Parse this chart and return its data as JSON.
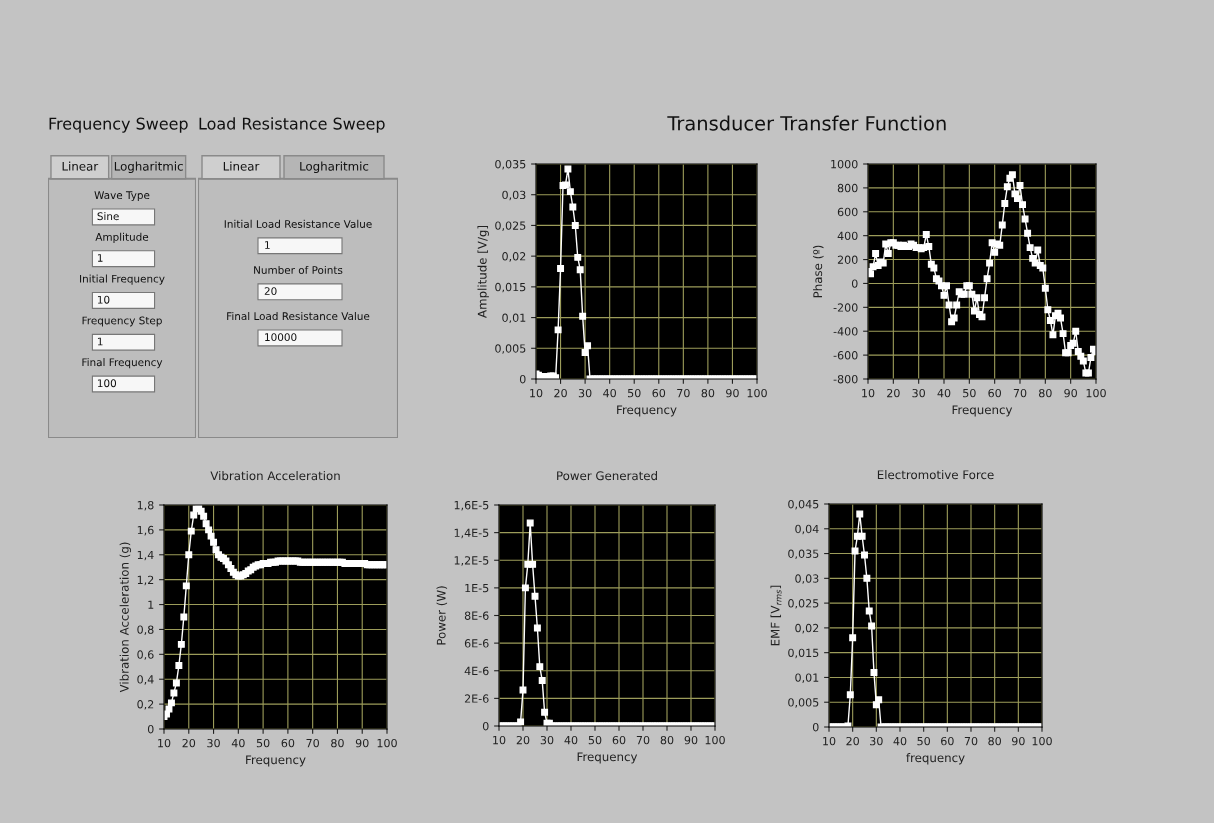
{
  "chart_data": [
    {
      "type": "other",
      "title": "Frequency Sweep",
      "annotations": [
        "Linear",
        "Logharitmic",
        "Wave Type",
        "Sine",
        "Amplitude",
        "1",
        "Initial Frequency",
        "10",
        "Frequency Step",
        "1",
        "Final Frequency",
        "100"
      ]
    },
    {
      "type": "other",
      "title": "Load Resistance Sweep",
      "annotations": [
        "Linear",
        "Logharitmic",
        "Initial Load Resistance Value",
        "1",
        "Number of Points",
        "20",
        "Final Load Resistance Value",
        "10000"
      ]
    },
    {
      "type": "line",
      "title": "Transducer Transfer Function",
      "xlabel": "Frequency",
      "ylabel": "Amplitude [V/g]",
      "marker": "square",
      "grid": true,
      "x": [
        10,
        11,
        12,
        13,
        14,
        15,
        16,
        17,
        18,
        19,
        20,
        21,
        22,
        23,
        24,
        25,
        26,
        27,
        28,
        29,
        30,
        31,
        32,
        33,
        34,
        35,
        36,
        37,
        38,
        39,
        40,
        41,
        42,
        43,
        44,
        45,
        46,
        47,
        48,
        49,
        50,
        51,
        52,
        53,
        54,
        55,
        56,
        57,
        58,
        59,
        60,
        61,
        62,
        63,
        64,
        65,
        66,
        67,
        68,
        69,
        70,
        71,
        72,
        73,
        74,
        75,
        76,
        77,
        78,
        79,
        80,
        81,
        82,
        83,
        84,
        85,
        86,
        87,
        88,
        89,
        90,
        91,
        92,
        93,
        94,
        95,
        96,
        97,
        98,
        99,
        100
      ],
      "series": [
        {
          "color": "#ffffff",
          "values": [
            0.0008,
            0.0006,
            0.0004,
            0.0004,
            0.0004,
            0.0004,
            0.0005,
            0.0005,
            0.0002,
            0.008,
            0.018,
            0.0315,
            0.0316,
            0.0342,
            0.0305,
            0.028,
            0.025,
            0.0198,
            0.0178,
            0.0102,
            0.0043,
            0.0054,
            0,
            0,
            0,
            0,
            0,
            0,
            0,
            0,
            0,
            0,
            0,
            0,
            0,
            0,
            0,
            0,
            0,
            0,
            0,
            0,
            0,
            0,
            0,
            0,
            0,
            0,
            0,
            0,
            0,
            0,
            0,
            0,
            0,
            0,
            0,
            0,
            0,
            0,
            0,
            0,
            0,
            0,
            0,
            0,
            0,
            0,
            0,
            0,
            0,
            0,
            0,
            0,
            0,
            0,
            0,
            0,
            0,
            0,
            0,
            0,
            0,
            0,
            0,
            0,
            0,
            0,
            0,
            0,
            0
          ]
        }
      ],
      "xlim": [
        10,
        100
      ],
      "xticks": [
        10,
        20,
        30,
        40,
        50,
        60,
        70,
        80,
        90,
        100
      ],
      "ylim": [
        0,
        0.035
      ],
      "yticks": [
        {
          "value": 0,
          "label": "0"
        },
        {
          "value": 0.005,
          "label": "0,005"
        },
        {
          "value": 0.01,
          "label": "0,01"
        },
        {
          "value": 0.015,
          "label": "0,015"
        },
        {
          "value": 0.02,
          "label": "0,02"
        },
        {
          "value": 0.025,
          "label": "0,025"
        },
        {
          "value": 0.03,
          "label": "0,03"
        },
        {
          "value": 0.035,
          "label": "0,035"
        }
      ]
    },
    {
      "type": "line",
      "xlabel": "Frequency",
      "ylabel": "Phase (º)",
      "marker": "square",
      "grid": true,
      "x": [
        10,
        11,
        12,
        13,
        14,
        15,
        16,
        17,
        18,
        19,
        20,
        21,
        22,
        23,
        24,
        25,
        26,
        27,
        28,
        29,
        30,
        31,
        32,
        33,
        34,
        35,
        36,
        37,
        38,
        39,
        40,
        41,
        42,
        43,
        44,
        45,
        46,
        47,
        48,
        49,
        50,
        51,
        52,
        53,
        54,
        55,
        56,
        57,
        58,
        59,
        60,
        61,
        62,
        63,
        64,
        65,
        66,
        67,
        68,
        69,
        70,
        71,
        72,
        73,
        74,
        75,
        76,
        77,
        78,
        79,
        80,
        81,
        82,
        83,
        84,
        85,
        86,
        87,
        88,
        89,
        90,
        91,
        92,
        93,
        94,
        95,
        96,
        97,
        98,
        99,
        100
      ],
      "series": [
        {
          "color": "#ffffff",
          "values": [
            100,
            80,
            140,
            250,
            150,
            180,
            170,
            330,
            250,
            340,
            340,
            320,
            320,
            310,
            320,
            310,
            310,
            330,
            320,
            300,
            300,
            290,
            300,
            410,
            310,
            160,
            130,
            40,
            20,
            -20,
            -100,
            -20,
            -180,
            -320,
            -290,
            -180,
            -70,
            -90,
            -90,
            -20,
            -20,
            -90,
            -230,
            -120,
            -260,
            -280,
            -120,
            40,
            170,
            340,
            260,
            330,
            320,
            490,
            670,
            810,
            880,
            910,
            750,
            710,
            820,
            660,
            540,
            420,
            300,
            210,
            170,
            280,
            150,
            130,
            -40,
            -220,
            -310,
            -430,
            -270,
            -250,
            -290,
            -420,
            -580,
            -580,
            -520,
            -500,
            -400,
            -570,
            -610,
            -650,
            -750,
            -750,
            -620,
            -550,
            -570
          ]
        }
      ],
      "xlim": [
        10,
        100
      ],
      "xticks": [
        10,
        20,
        30,
        40,
        50,
        60,
        70,
        80,
        90,
        100
      ],
      "ylim": [
        -800,
        1000
      ],
      "yticks": [
        -800,
        -600,
        -400,
        -200,
        0,
        200,
        400,
        600,
        800,
        1000
      ]
    },
    {
      "type": "line",
      "title": "Vibration Acceleration",
      "xlabel": "Frequency",
      "ylabel": "Vibration Acceleration (g)",
      "marker": "square",
      "grid": true,
      "x": [
        10,
        11,
        12,
        13,
        14,
        15,
        16,
        17,
        18,
        19,
        20,
        21,
        22,
        23,
        24,
        25,
        26,
        27,
        28,
        29,
        30,
        31,
        32,
        33,
        34,
        35,
        36,
        37,
        38,
        39,
        40,
        41,
        42,
        43,
        44,
        45,
        46,
        47,
        48,
        49,
        50,
        51,
        52,
        53,
        54,
        55,
        56,
        57,
        58,
        59,
        60,
        61,
        62,
        63,
        64,
        65,
        66,
        67,
        68,
        69,
        70,
        71,
        72,
        73,
        74,
        75,
        76,
        77,
        78,
        79,
        80,
        81,
        82,
        83,
        84,
        85,
        86,
        87,
        88,
        89,
        90,
        91,
        92,
        93,
        94,
        95,
        96,
        97,
        98,
        99,
        100
      ],
      "series": [
        {
          "color": "#ffffff",
          "values": [
            0.1,
            0.12,
            0.16,
            0.21,
            0.29,
            0.37,
            0.51,
            0.68,
            0.9,
            1.15,
            1.4,
            1.59,
            1.72,
            1.77,
            1.78,
            1.75,
            1.71,
            1.65,
            1.6,
            1.55,
            1.5,
            1.44,
            1.4,
            1.38,
            1.37,
            1.35,
            1.32,
            1.29,
            1.26,
            1.24,
            1.23,
            1.23,
            1.24,
            1.25,
            1.27,
            1.28,
            1.3,
            1.31,
            1.32,
            1.32,
            1.33,
            1.33,
            1.33,
            1.34,
            1.34,
            1.34,
            1.35,
            1.35,
            1.35,
            1.35,
            1.35,
            1.35,
            1.35,
            1.35,
            1.35,
            1.34,
            1.34,
            1.34,
            1.34,
            1.34,
            1.34,
            1.34,
            1.34,
            1.34,
            1.34,
            1.34,
            1.34,
            1.34,
            1.34,
            1.34,
            1.34,
            1.34,
            1.34,
            1.33,
            1.33,
            1.33,
            1.33,
            1.33,
            1.33,
            1.33,
            1.33,
            1.33,
            1.32,
            1.32,
            1.32,
            1.32,
            1.32,
            1.32,
            1.32,
            1.32,
            1.32
          ]
        }
      ],
      "xlim": [
        10,
        100
      ],
      "xticks": [
        10,
        20,
        30,
        40,
        50,
        60,
        70,
        80,
        90,
        100
      ],
      "ylim": [
        0,
        1.8
      ],
      "yticks": [
        {
          "value": 0,
          "label": "0"
        },
        {
          "value": 0.2,
          "label": "0,2"
        },
        {
          "value": 0.4,
          "label": "0,4"
        },
        {
          "value": 0.6,
          "label": "0,6"
        },
        {
          "value": 0.8,
          "label": "0,8"
        },
        {
          "value": 1,
          "label": "1"
        },
        {
          "value": 1.2,
          "label": "1,2"
        },
        {
          "value": 1.4,
          "label": "1,4"
        },
        {
          "value": 1.6,
          "label": "1,6"
        },
        {
          "value": 1.8,
          "label": "1,8"
        }
      ]
    },
    {
      "type": "line",
      "title": "Power Generated",
      "xlabel": "Frequency",
      "ylabel": "Power (W)",
      "marker": "square",
      "grid": true,
      "x": [
        10,
        11,
        12,
        13,
        14,
        15,
        16,
        17,
        18,
        19,
        20,
        21,
        22,
        23,
        24,
        25,
        26,
        27,
        28,
        29,
        30,
        31,
        32,
        33,
        34,
        35,
        36,
        37,
        38,
        39,
        40,
        41,
        42,
        43,
        44,
        45,
        46,
        47,
        48,
        49,
        50,
        51,
        52,
        53,
        54,
        55,
        56,
        57,
        58,
        59,
        60,
        61,
        62,
        63,
        64,
        65,
        66,
        67,
        68,
        69,
        70,
        71,
        72,
        73,
        74,
        75,
        76,
        77,
        78,
        79,
        80,
        81,
        82,
        83,
        84,
        85,
        86,
        87,
        88,
        89,
        90,
        91,
        92,
        93,
        94,
        95,
        96,
        97,
        98,
        99,
        100
      ],
      "series": [
        {
          "color": "#ffffff",
          "values": [
            0,
            0,
            0,
            0,
            0,
            0,
            0,
            0,
            0,
            3e-07,
            2.6e-06,
            1e-05,
            1.17e-05,
            1.47e-05,
            1.17e-05,
            9.4e-06,
            7.1e-06,
            4.3e-06,
            3.3e-06,
            1e-06,
            2e-07,
            2e-07,
            0,
            0,
            0,
            0,
            0,
            0,
            0,
            0,
            0,
            0,
            0,
            0,
            0,
            0,
            0,
            0,
            0,
            0,
            0,
            0,
            0,
            0,
            0,
            0,
            0,
            0,
            0,
            0,
            0,
            0,
            0,
            0,
            0,
            0,
            0,
            0,
            0,
            0,
            0,
            0,
            0,
            0,
            0,
            0,
            0,
            0,
            0,
            0,
            0,
            0,
            0,
            0,
            0,
            0,
            0,
            0,
            0,
            0,
            0,
            0,
            0,
            0,
            0,
            0,
            0,
            0,
            0,
            0,
            0
          ]
        }
      ],
      "xlim": [
        10,
        100
      ],
      "xticks": [
        10,
        20,
        30,
        40,
        50,
        60,
        70,
        80,
        90,
        100
      ],
      "ylim": [
        0,
        1.6e-05
      ],
      "yticks": [
        {
          "value": 0,
          "label": "0"
        },
        {
          "value": 2e-06,
          "label": "2E-6"
        },
        {
          "value": 4e-06,
          "label": "4E-6"
        },
        {
          "value": 6e-06,
          "label": "6E-6"
        },
        {
          "value": 8e-06,
          "label": "8E-6"
        },
        {
          "value": 1e-05,
          "label": "1E-5"
        },
        {
          "value": 1.2e-05,
          "label": "1,2E-5"
        },
        {
          "value": 1.4e-05,
          "label": "1,4E-5"
        },
        {
          "value": 1.6e-05,
          "label": "1,6E-5"
        }
      ]
    },
    {
      "type": "line",
      "title": "Electromotive Force",
      "xlabel": "frequency",
      "ylabel": "EMF [V$_{rms}$]",
      "marker": "square",
      "grid": true,
      "x": [
        10,
        11,
        12,
        13,
        14,
        15,
        16,
        17,
        18,
        19,
        20,
        21,
        22,
        23,
        24,
        25,
        26,
        27,
        28,
        29,
        30,
        31,
        32,
        33,
        34,
        35,
        36,
        37,
        38,
        39,
        40,
        41,
        42,
        43,
        44,
        45,
        46,
        47,
        48,
        49,
        50,
        51,
        52,
        53,
        54,
        55,
        56,
        57,
        58,
        59,
        60,
        61,
        62,
        63,
        64,
        65,
        66,
        67,
        68,
        69,
        70,
        71,
        72,
        73,
        74,
        75,
        76,
        77,
        78,
        79,
        80,
        81,
        82,
        83,
        84,
        85,
        86,
        87,
        88,
        89,
        90,
        91,
        92,
        93,
        94,
        95,
        96,
        97,
        98,
        99,
        100
      ],
      "series": [
        {
          "color": "#ffffff",
          "values": [
            0,
            0,
            0,
            0,
            0,
            0,
            0,
            0,
            0.0002,
            0.0065,
            0.018,
            0.0355,
            0.0385,
            0.043,
            0.0385,
            0.0347,
            0.03,
            0.0234,
            0.0204,
            0.011,
            0.0045,
            0.0055,
            0,
            0,
            0,
            0,
            0,
            0,
            0,
            0,
            0,
            0,
            0,
            0,
            0,
            0,
            0,
            0,
            0,
            0,
            0,
            0,
            0,
            0,
            0,
            0,
            0,
            0,
            0,
            0,
            0,
            0,
            0,
            0,
            0,
            0,
            0,
            0,
            0,
            0,
            0,
            0,
            0,
            0,
            0,
            0,
            0,
            0,
            0,
            0,
            0,
            0,
            0,
            0,
            0,
            0,
            0,
            0,
            0,
            0,
            0,
            0,
            0,
            0,
            0,
            0,
            0,
            0,
            0,
            0,
            0
          ]
        }
      ],
      "xlim": [
        10,
        100
      ],
      "xticks": [
        10,
        20,
        30,
        40,
        50,
        60,
        70,
        80,
        90,
        100
      ],
      "ylim": [
        0,
        0.045
      ],
      "yticks": [
        {
          "value": 0,
          "label": "0"
        },
        {
          "value": 0.005,
          "label": "0,005"
        },
        {
          "value": 0.01,
          "label": "0,01"
        },
        {
          "value": 0.015,
          "label": "0,015"
        },
        {
          "value": 0.02,
          "label": "0,02"
        },
        {
          "value": 0.025,
          "label": "0,025"
        },
        {
          "value": 0.03,
          "label": "0,03"
        },
        {
          "value": 0.035,
          "label": "0,035"
        },
        {
          "value": 0.04,
          "label": "0,04"
        },
        {
          "value": 0.045,
          "label": "0,045"
        }
      ]
    }
  ]
}
